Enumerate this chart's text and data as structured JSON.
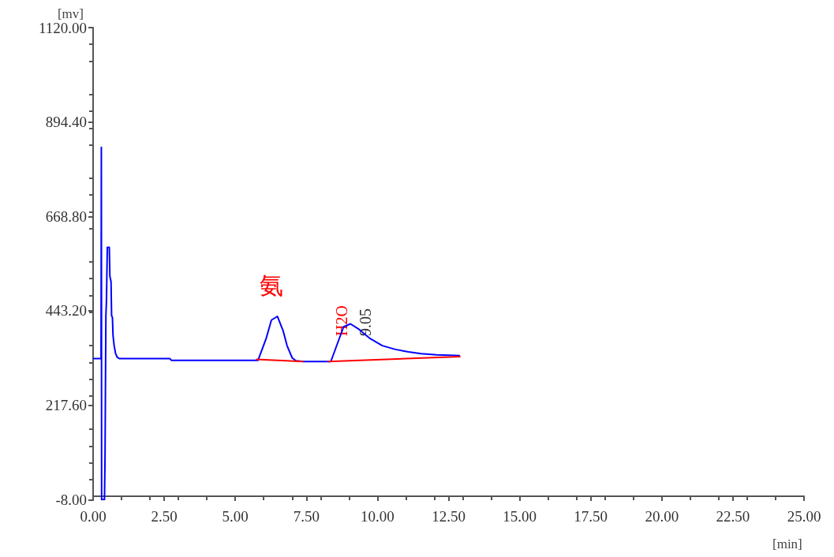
{
  "chart_data": {
    "type": "line",
    "xlabel": "[min]",
    "ylabel": "[mv]",
    "xlim": [
      0,
      25
    ],
    "ylim": [
      -8,
      1120
    ],
    "xticks": [
      {
        "value": 0,
        "label": "0.00"
      },
      {
        "value": 2.5,
        "label": "2.50"
      },
      {
        "value": 5,
        "label": "5.00"
      },
      {
        "value": 7.5,
        "label": "7.50"
      },
      {
        "value": 10,
        "label": "10.00"
      },
      {
        "value": 12.5,
        "label": "12.50"
      },
      {
        "value": 15,
        "label": "15.00"
      },
      {
        "value": 17.5,
        "label": "17.50"
      },
      {
        "value": 20,
        "label": "20.00"
      },
      {
        "value": 22.5,
        "label": "22.50"
      },
      {
        "value": 25,
        "label": "25.00"
      }
    ],
    "yticks": [
      {
        "value": -8,
        "label": "-8.00"
      },
      {
        "value": 217.6,
        "label": "217.60"
      },
      {
        "value": 443.2,
        "label": "443.20"
      },
      {
        "value": 668.8,
        "label": "668.80"
      },
      {
        "value": 894.4,
        "label": "894.40"
      },
      {
        "value": 1120,
        "label": "1120.00"
      }
    ],
    "grid": false,
    "marker": "none",
    "line_style": "solid",
    "series": [
      {
        "color": "#0000ff",
        "x": [
          0,
          0.28,
          0.29,
          0.3,
          0.4,
          0.42,
          0.45,
          0.47,
          0.5,
          0.57,
          0.59,
          0.63,
          0.65,
          0.68,
          0.7,
          0.74,
          0.79,
          0.85,
          0.93,
          2.7,
          2.75,
          5.8,
          6.09,
          6.27,
          6.48,
          6.68,
          6.82,
          7.0,
          7.13,
          7.4,
          8.36,
          8.63,
          8.81,
          9.05,
          9.35,
          9.72,
          10.17,
          10.63,
          11.09,
          11.53,
          12.08,
          12.9
        ],
        "values": [
          329,
          329,
          834,
          -8,
          -8,
          95,
          432,
          468,
          595,
          595,
          526,
          513,
          432,
          427,
          385,
          360,
          341,
          332,
          329,
          329,
          325,
          325,
          378,
          421,
          430,
          396,
          360,
          331,
          324,
          322,
          322,
          372,
          405,
          412,
          399,
          378,
          360,
          351,
          345,
          341,
          338,
          336
        ]
      },
      {
        "color": "#ff0000",
        "x": [
          5.73,
          7.39
        ],
        "values": [
          327,
          322
        ]
      },
      {
        "color": "#ff0000",
        "x": [
          8.26,
          12.92
        ],
        "values": [
          322,
          334
        ]
      }
    ],
    "annotations": [
      "氨",
      "H2O",
      "9.05"
    ]
  }
}
